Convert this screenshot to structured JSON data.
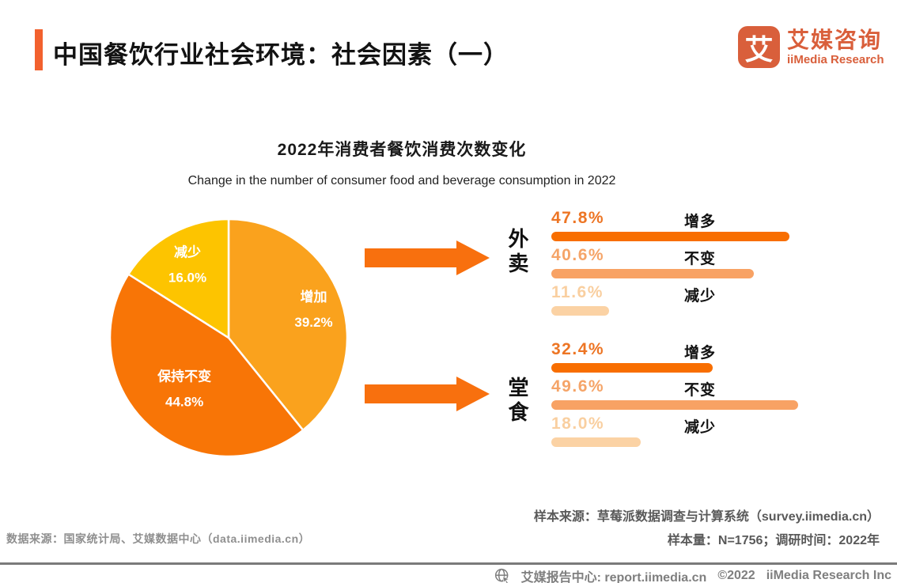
{
  "page": {
    "title": "中国餐饮行业社会环境：社会因素（一）",
    "accent_color": "#F2612E"
  },
  "logo": {
    "glyph": "艾",
    "name_cn": "艾媒咨询",
    "name_en": "iiMedia Research",
    "color": "#D95F3B"
  },
  "chart_header": {
    "title_cn": "2022年消费者餐饮消费次数变化",
    "title_en": "Change in the number of consumer food and beverage consumption in 2022"
  },
  "chart_data": [
    {
      "type": "pie",
      "title": "2022年消费者餐饮消费次数变化",
      "start_angle_deg": 0,
      "direction": "clockwise",
      "label_position": "inside",
      "slices": [
        {
          "label": "增加",
          "value": 39.2,
          "pct_label": "39.2%",
          "color": "#FAA21D"
        },
        {
          "label": "保持不变",
          "value": 44.8,
          "pct_label": "44.8%",
          "color": "#F87506"
        },
        {
          "label": "减少",
          "value": 16.0,
          "pct_label": "16.0%",
          "color": "#FDC400"
        }
      ]
    },
    {
      "type": "bar",
      "group_label": "外卖",
      "orientation": "horizontal",
      "xlim": [
        0,
        60
      ],
      "categories": [
        "增多",
        "不变",
        "减少"
      ],
      "values": [
        47.8,
        40.6,
        11.6
      ],
      "pct_labels": [
        "47.8%",
        "40.6%",
        "11.6%"
      ],
      "bar_colors": [
        "#F86E00",
        "#F8A264",
        "#FBD2A4"
      ],
      "value_text_colors": [
        "#ED7524",
        "#F5A468",
        "#F9CFA0"
      ]
    },
    {
      "type": "bar",
      "group_label": "堂食",
      "orientation": "horizontal",
      "xlim": [
        0,
        60
      ],
      "categories": [
        "增多",
        "不变",
        "减少"
      ],
      "values": [
        32.4,
        49.6,
        18.0
      ],
      "pct_labels": [
        "32.4%",
        "49.6%",
        "18.0%"
      ],
      "bar_colors": [
        "#F86E00",
        "#F8A264",
        "#FBD2A4"
      ],
      "value_text_colors": [
        "#ED7524",
        "#F5A468",
        "#F9CFA0"
      ]
    }
  ],
  "sources": {
    "data_source": "数据来源：国家统计局、艾媒数据中心（data.iimedia.cn）",
    "sample_source": "样本来源：草莓派数据调查与计算系统（survey.iimedia.cn）",
    "sample_info": "样本量：N=1756；调研时间：2022年"
  },
  "bottom_bar": {
    "report_center": "艾媒报告中心: report.iimedia.cn",
    "copyright": "©2022",
    "company": "iiMedia Research Inc"
  }
}
